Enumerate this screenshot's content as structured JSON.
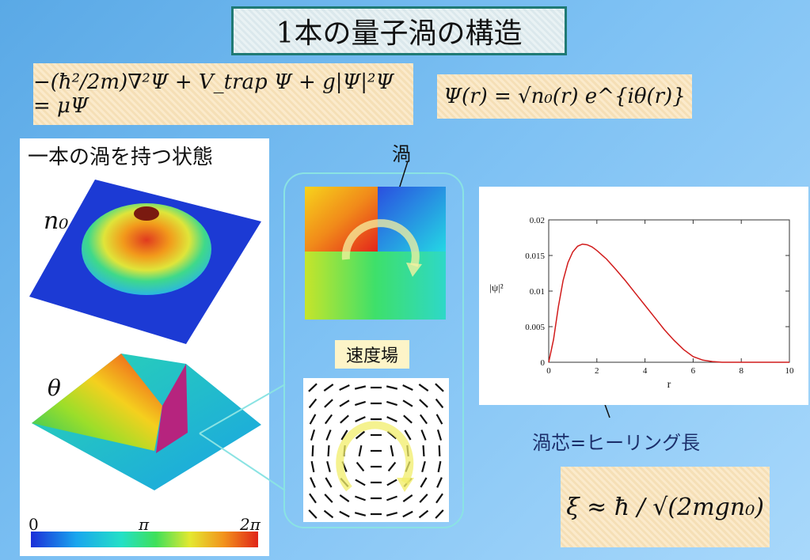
{
  "title": "1本の量子渦の構造",
  "equations": {
    "gp": "−(ħ²/2m)∇²Ψ + V_trap Ψ + g|Ψ|²Ψ = μΨ",
    "order_param": "Ψ(r) = √n₀(r) e^{iθ(r)}",
    "healing": "ξ ≈ ħ / √(2mgn₀)"
  },
  "left_panel": {
    "heading": "一本の渦を持つ状態",
    "density_label": "n₀",
    "phase_label": "θ",
    "colorbar": {
      "min": "0",
      "mid": "π",
      "max": "2π"
    }
  },
  "labels": {
    "vortex": "渦",
    "velocity_field": "速度場",
    "core": "渦芯=ヒーリング長"
  },
  "colors": {
    "background_start": "#5aa9e6",
    "background_end": "#a8d8fb",
    "title_border": "#1f7a74",
    "formula_bg": "#fbeacb",
    "curve": "#d11b1b",
    "frame_border": "#8ae3e3"
  },
  "chart_data": {
    "type": "line",
    "xlabel": "r",
    "ylabel": "|ψ|²",
    "xlim": [
      0,
      10
    ],
    "ylim": [
      0,
      0.02
    ],
    "xticks": [
      "0",
      "2",
      "4",
      "6",
      "8",
      "10"
    ],
    "yticks": [
      "0",
      "0.005",
      "0.01",
      "0.015",
      "0.02"
    ],
    "series": [
      {
        "x": [
          0,
          0.2,
          0.4,
          0.6,
          0.8,
          1.0,
          1.2,
          1.4,
          1.6,
          1.8,
          2.0,
          2.4,
          2.8,
          3.2,
          3.6,
          4.0,
          4.4,
          4.8,
          5.2,
          5.6,
          6.0,
          6.4,
          6.8,
          7.2,
          8.0,
          10.0
        ],
        "y": [
          0,
          0.0032,
          0.0078,
          0.0115,
          0.014,
          0.0155,
          0.0163,
          0.0166,
          0.0165,
          0.0162,
          0.0157,
          0.0145,
          0.013,
          0.0114,
          0.0097,
          0.008,
          0.0063,
          0.0046,
          0.0031,
          0.0018,
          0.0008,
          0.0003,
          0.0001,
          0.0,
          0.0,
          0.0
        ]
      }
    ]
  }
}
